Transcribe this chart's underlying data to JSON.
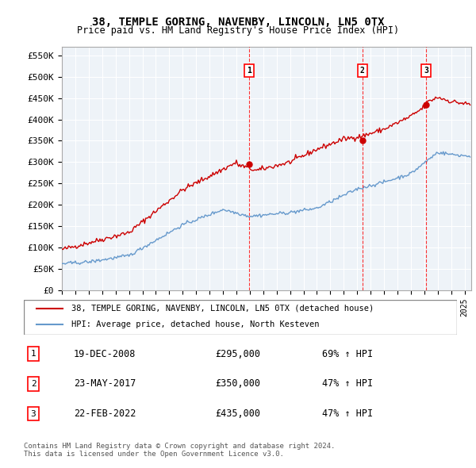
{
  "title": "38, TEMPLE GORING, NAVENBY, LINCOLN, LN5 0TX",
  "subtitle": "Price paid vs. HM Land Registry's House Price Index (HPI)",
  "ylabel": "",
  "ylim": [
    0,
    570000
  ],
  "yticks": [
    0,
    50000,
    100000,
    150000,
    200000,
    250000,
    300000,
    350000,
    400000,
    450000,
    500000,
    550000
  ],
  "ytick_labels": [
    "£0",
    "£50K",
    "£100K",
    "£150K",
    "£200K",
    "£250K",
    "£300K",
    "£350K",
    "£400K",
    "£450K",
    "£500K",
    "£550K"
  ],
  "line1_color": "#cc0000",
  "line2_color": "#6699cc",
  "bg_color": "#eef3f8",
  "plot_bg": "#eef3f8",
  "grid_color": "#ffffff",
  "sale_markers": [
    {
      "date": 2008.97,
      "price": 295000,
      "label": "1"
    },
    {
      "date": 2017.39,
      "price": 350000,
      "label": "2"
    },
    {
      "date": 2022.14,
      "price": 435000,
      "label": "3"
    }
  ],
  "legend_line1": "38, TEMPLE GORING, NAVENBY, LINCOLN, LN5 0TX (detached house)",
  "legend_line2": "HPI: Average price, detached house, North Kesteven",
  "table_rows": [
    {
      "num": "1",
      "date": "19-DEC-2008",
      "price": "£295,000",
      "change": "69% ↑ HPI"
    },
    {
      "num": "2",
      "date": "23-MAY-2017",
      "price": "£350,000",
      "change": "47% ↑ HPI"
    },
    {
      "num": "3",
      "date": "22-FEB-2022",
      "price": "£435,000",
      "change": "47% ↑ HPI"
    }
  ],
  "footer": "Contains HM Land Registry data © Crown copyright and database right 2024.\nThis data is licensed under the Open Government Licence v3.0.",
  "xmin": 1995.0,
  "xmax": 2025.5
}
